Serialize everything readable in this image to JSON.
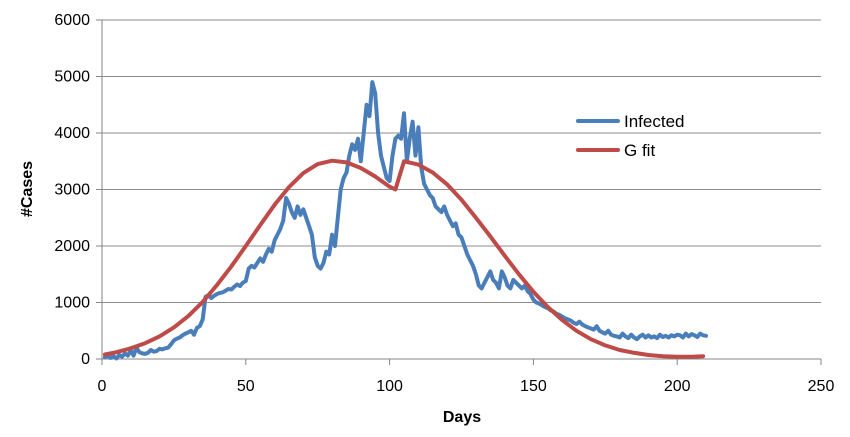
{
  "chart_data": {
    "type": "line",
    "xlabel": "Days",
    "ylabel": "#Cases",
    "xlim": [
      0,
      250
    ],
    "ylim": [
      0,
      6000
    ],
    "x_ticks": [
      0,
      50,
      100,
      150,
      200,
      250
    ],
    "y_ticks": [
      0,
      1000,
      2000,
      3000,
      4000,
      5000,
      6000
    ],
    "grid": "horizontal",
    "legend_position": "right",
    "series": [
      {
        "name": "Infected",
        "color": "#4a7ebb",
        "points": [
          [
            1,
            30
          ],
          [
            2,
            60
          ],
          [
            3,
            20
          ],
          [
            4,
            50
          ],
          [
            5,
            10
          ],
          [
            6,
            70
          ],
          [
            7,
            40
          ],
          [
            8,
            100
          ],
          [
            9,
            60
          ],
          [
            10,
            150
          ],
          [
            11,
            60
          ],
          [
            12,
            200
          ],
          [
            13,
            120
          ],
          [
            14,
            100
          ],
          [
            15,
            90
          ],
          [
            16,
            110
          ],
          [
            17,
            160
          ],
          [
            18,
            130
          ],
          [
            19,
            140
          ],
          [
            20,
            180
          ],
          [
            21,
            170
          ],
          [
            22,
            190
          ],
          [
            23,
            200
          ],
          [
            24,
            260
          ],
          [
            25,
            330
          ],
          [
            26,
            360
          ],
          [
            27,
            380
          ],
          [
            28,
            420
          ],
          [
            29,
            450
          ],
          [
            30,
            470
          ],
          [
            31,
            500
          ],
          [
            32,
            430
          ],
          [
            33,
            550
          ],
          [
            34,
            580
          ],
          [
            35,
            700
          ],
          [
            36,
            1100
          ],
          [
            37,
            1130
          ],
          [
            38,
            1080
          ],
          [
            39,
            1120
          ],
          [
            40,
            1150
          ],
          [
            41,
            1170
          ],
          [
            42,
            1180
          ],
          [
            43,
            1210
          ],
          [
            44,
            1240
          ],
          [
            45,
            1230
          ],
          [
            46,
            1280
          ],
          [
            47,
            1320
          ],
          [
            48,
            1290
          ],
          [
            49,
            1350
          ],
          [
            50,
            1380
          ],
          [
            51,
            1600
          ],
          [
            52,
            1650
          ],
          [
            53,
            1620
          ],
          [
            54,
            1700
          ],
          [
            55,
            1780
          ],
          [
            56,
            1720
          ],
          [
            57,
            1850
          ],
          [
            58,
            1950
          ],
          [
            59,
            1900
          ],
          [
            60,
            2100
          ],
          [
            61,
            2200
          ],
          [
            62,
            2300
          ],
          [
            63,
            2450
          ],
          [
            64,
            2850
          ],
          [
            65,
            2750
          ],
          [
            66,
            2600
          ],
          [
            67,
            2500
          ],
          [
            68,
            2700
          ],
          [
            69,
            2550
          ],
          [
            70,
            2650
          ],
          [
            71,
            2500
          ],
          [
            72,
            2350
          ],
          [
            73,
            2200
          ],
          [
            74,
            1800
          ],
          [
            75,
            1650
          ],
          [
            76,
            1600
          ],
          [
            77,
            1700
          ],
          [
            78,
            1900
          ],
          [
            79,
            1850
          ],
          [
            80,
            2200
          ],
          [
            81,
            2000
          ],
          [
            82,
            2500
          ],
          [
            83,
            3000
          ],
          [
            84,
            3200
          ],
          [
            85,
            3300
          ],
          [
            86,
            3600
          ],
          [
            87,
            3800
          ],
          [
            88,
            3700
          ],
          [
            89,
            3900
          ],
          [
            90,
            3500
          ],
          [
            91,
            4000
          ],
          [
            92,
            4500
          ],
          [
            93,
            4300
          ],
          [
            94,
            4900
          ],
          [
            95,
            4700
          ],
          [
            96,
            4000
          ],
          [
            97,
            3600
          ],
          [
            98,
            3400
          ],
          [
            99,
            3200
          ],
          [
            100,
            3150
          ],
          [
            101,
            3600
          ],
          [
            102,
            3900
          ],
          [
            103,
            3950
          ],
          [
            104,
            3900
          ],
          [
            105,
            4350
          ],
          [
            106,
            3500
          ],
          [
            107,
            3900
          ],
          [
            108,
            4200
          ],
          [
            109,
            3600
          ],
          [
            110,
            4100
          ],
          [
            111,
            3400
          ],
          [
            112,
            3100
          ],
          [
            113,
            3000
          ],
          [
            114,
            2900
          ],
          [
            115,
            2850
          ],
          [
            116,
            2700
          ],
          [
            117,
            2650
          ],
          [
            118,
            2600
          ],
          [
            119,
            2700
          ],
          [
            120,
            2550
          ],
          [
            121,
            2450
          ],
          [
            122,
            2350
          ],
          [
            123,
            2400
          ],
          [
            124,
            2200
          ],
          [
            125,
            2150
          ],
          [
            126,
            2000
          ],
          [
            127,
            1850
          ],
          [
            128,
            1750
          ],
          [
            129,
            1650
          ],
          [
            130,
            1500
          ],
          [
            131,
            1300
          ],
          [
            132,
            1250
          ],
          [
            133,
            1350
          ],
          [
            134,
            1450
          ],
          [
            135,
            1550
          ],
          [
            136,
            1400
          ],
          [
            137,
            1350
          ],
          [
            138,
            1250
          ],
          [
            139,
            1550
          ],
          [
            140,
            1450
          ],
          [
            141,
            1300
          ],
          [
            142,
            1250
          ],
          [
            143,
            1400
          ],
          [
            144,
            1350
          ],
          [
            145,
            1300
          ],
          [
            146,
            1250
          ],
          [
            147,
            1300
          ],
          [
            148,
            1200
          ],
          [
            149,
            1150
          ],
          [
            150,
            1050
          ],
          [
            151,
            1000
          ],
          [
            152,
            980
          ],
          [
            153,
            950
          ],
          [
            154,
            920
          ],
          [
            155,
            900
          ],
          [
            156,
            860
          ],
          [
            157,
            840
          ],
          [
            158,
            800
          ],
          [
            159,
            780
          ],
          [
            160,
            750
          ],
          [
            161,
            720
          ],
          [
            162,
            700
          ],
          [
            163,
            680
          ],
          [
            164,
            640
          ],
          [
            165,
            620
          ],
          [
            166,
            660
          ],
          [
            167,
            610
          ],
          [
            168,
            580
          ],
          [
            169,
            560
          ],
          [
            170,
            540
          ],
          [
            171,
            520
          ],
          [
            172,
            580
          ],
          [
            173,
            500
          ],
          [
            174,
            470
          ],
          [
            175,
            450
          ],
          [
            176,
            500
          ],
          [
            177,
            430
          ],
          [
            178,
            410
          ],
          [
            179,
            400
          ],
          [
            180,
            380
          ],
          [
            181,
            450
          ],
          [
            182,
            400
          ],
          [
            183,
            370
          ],
          [
            184,
            430
          ],
          [
            185,
            380
          ],
          [
            186,
            350
          ],
          [
            187,
            400
          ],
          [
            188,
            430
          ],
          [
            189,
            380
          ],
          [
            190,
            420
          ],
          [
            191,
            380
          ],
          [
            192,
            400
          ],
          [
            193,
            370
          ],
          [
            194,
            430
          ],
          [
            195,
            390
          ],
          [
            196,
            410
          ],
          [
            197,
            380
          ],
          [
            198,
            420
          ],
          [
            199,
            400
          ],
          [
            200,
            430
          ],
          [
            201,
            420
          ],
          [
            202,
            380
          ],
          [
            203,
            450
          ],
          [
            204,
            400
          ],
          [
            205,
            440
          ],
          [
            206,
            420
          ],
          [
            207,
            390
          ],
          [
            208,
            450
          ],
          [
            209,
            420
          ],
          [
            210,
            410
          ]
        ]
      },
      {
        "name": "G fit",
        "color": "#be4b48",
        "points": [
          [
            1,
            80
          ],
          [
            5,
            120
          ],
          [
            10,
            190
          ],
          [
            15,
            280
          ],
          [
            20,
            400
          ],
          [
            25,
            560
          ],
          [
            30,
            760
          ],
          [
            35,
            1010
          ],
          [
            40,
            1310
          ],
          [
            45,
            1640
          ],
          [
            50,
            2000
          ],
          [
            55,
            2370
          ],
          [
            60,
            2730
          ],
          [
            65,
            3040
          ],
          [
            70,
            3290
          ],
          [
            75,
            3450
          ],
          [
            80,
            3510
          ],
          [
            85,
            3480
          ],
          [
            90,
            3380
          ],
          [
            95,
            3230
          ],
          [
            100,
            3050
          ],
          [
            102,
            3000
          ],
          [
            105,
            3500
          ],
          [
            110,
            3440
          ],
          [
            115,
            3300
          ],
          [
            120,
            3090
          ],
          [
            125,
            2820
          ],
          [
            130,
            2500
          ],
          [
            135,
            2170
          ],
          [
            140,
            1830
          ],
          [
            145,
            1500
          ],
          [
            150,
            1190
          ],
          [
            155,
            920
          ],
          [
            160,
            690
          ],
          [
            165,
            500
          ],
          [
            170,
            350
          ],
          [
            175,
            240
          ],
          [
            180,
            160
          ],
          [
            185,
            110
          ],
          [
            190,
            70
          ],
          [
            195,
            50
          ],
          [
            200,
            40
          ],
          [
            205,
            40
          ],
          [
            209,
            50
          ]
        ]
      }
    ]
  }
}
